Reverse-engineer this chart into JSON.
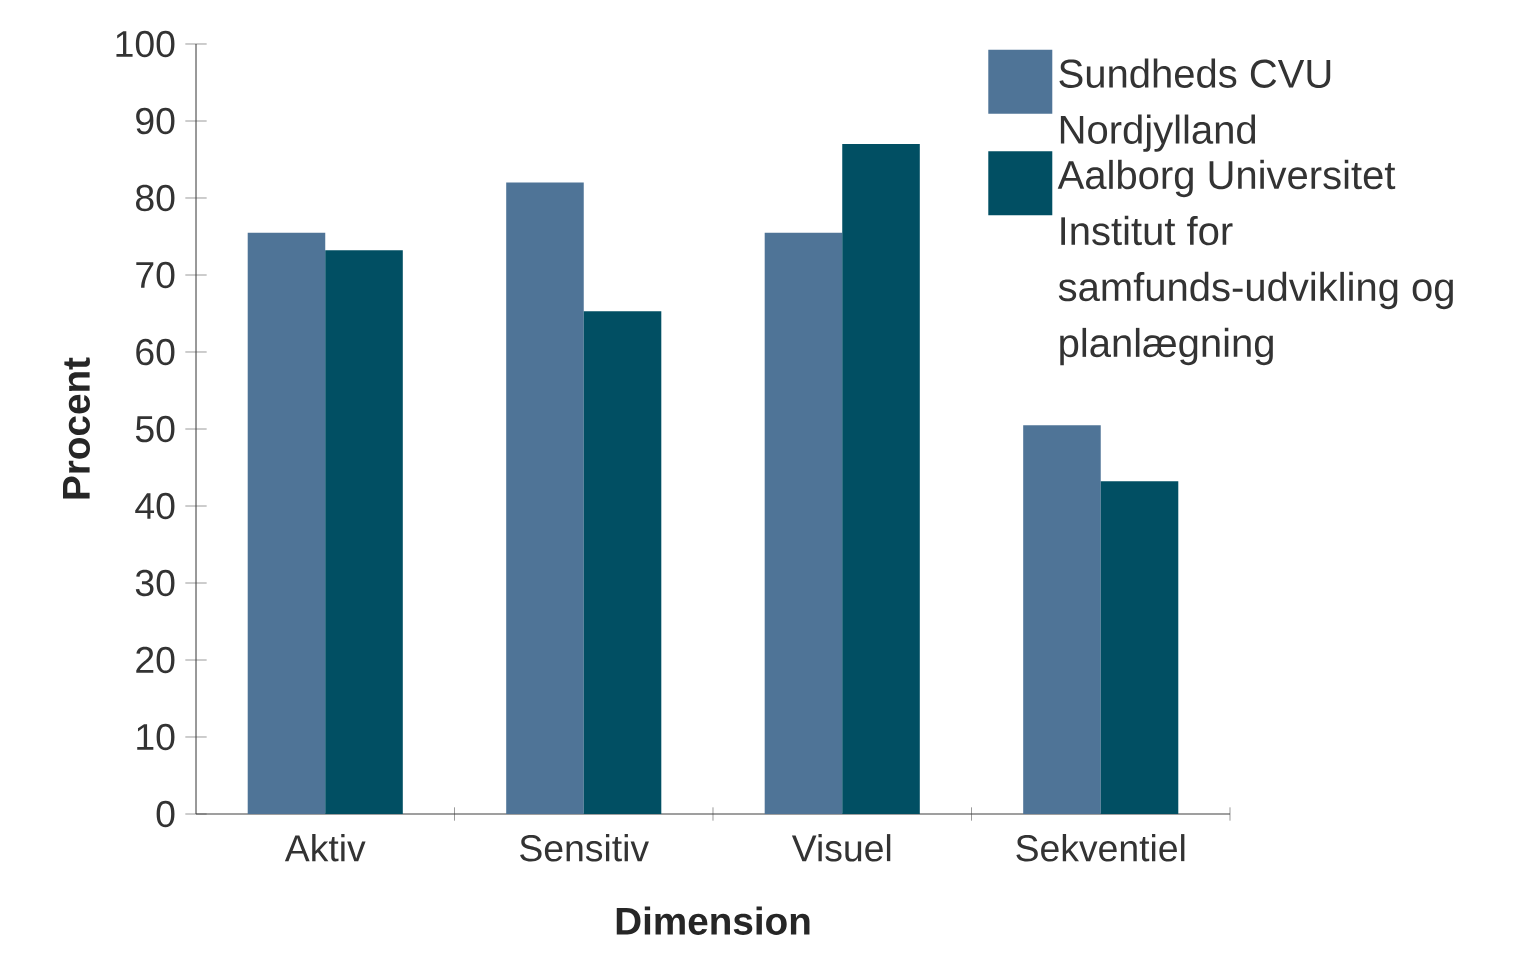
{
  "chart_data": {
    "type": "bar",
    "xlabel": "Dimension",
    "ylabel": "Procent",
    "categories": [
      "Aktiv",
      "Sensitiv",
      "Visuel",
      "Sekventiel"
    ],
    "series": [
      {
        "name": "Sundheds CVU Nordjylland",
        "color": "#4f7497",
        "values": [
          75.5,
          82,
          75.5,
          50.5
        ]
      },
      {
        "name": "Aalborg Universitet Institut for samfunds-udvikling og planlægning",
        "color": "#014f63",
        "values": [
          73.2,
          65.3,
          87,
          43.2
        ]
      }
    ],
    "ylim": [
      0,
      100
    ],
    "yticks": [
      0,
      10,
      20,
      30,
      40,
      50,
      60,
      70,
      80,
      90,
      100
    ],
    "grid": false,
    "legend": "top right"
  }
}
